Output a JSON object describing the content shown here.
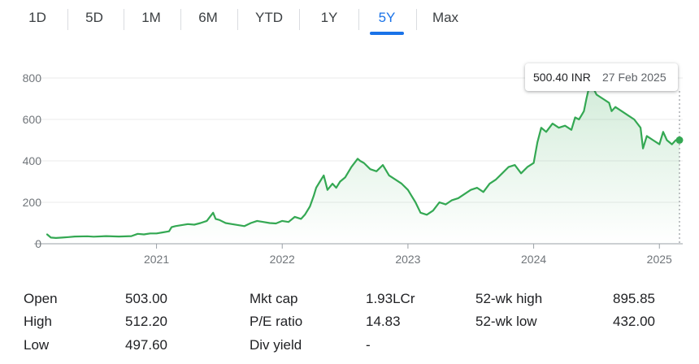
{
  "tabs": [
    {
      "label": "1D",
      "active": false
    },
    {
      "label": "5D",
      "active": false
    },
    {
      "label": "1M",
      "active": false
    },
    {
      "label": "6M",
      "active": false
    },
    {
      "label": "YTD",
      "active": false
    },
    {
      "label": "1Y",
      "active": false
    },
    {
      "label": "5Y",
      "active": true
    },
    {
      "label": "Max",
      "active": false
    }
  ],
  "tooltip": {
    "price": "500.40 INR",
    "date": "27 Feb 2025"
  },
  "colors": {
    "line": "#34a853",
    "accent": "#1a73e8",
    "grid": "#ebebeb",
    "text": "#202124",
    "muted": "#70757a"
  },
  "chart_data": {
    "type": "area",
    "title": "",
    "xlabel": "",
    "ylabel": "",
    "ylim": [
      0,
      800
    ],
    "xlim": [
      2020.13,
      2025.16
    ],
    "grid": true,
    "y_ticks": [
      {
        "value": 0,
        "label": "0"
      },
      {
        "value": 200,
        "label": "200"
      },
      {
        "value": 400,
        "label": "400"
      },
      {
        "value": 600,
        "label": "600"
      },
      {
        "value": 800,
        "label": "800"
      }
    ],
    "x_ticks": [
      {
        "value": 2021.0,
        "label": "2021"
      },
      {
        "value": 2022.0,
        "label": "2022"
      },
      {
        "value": 2023.0,
        "label": "2023"
      },
      {
        "value": 2024.0,
        "label": "2024"
      },
      {
        "value": 2025.0,
        "label": "2025"
      }
    ],
    "series": [
      {
        "x": [
          2020.13,
          2020.16,
          2020.2,
          2020.25,
          2020.3,
          2020.35,
          2020.45,
          2020.5,
          2020.6,
          2020.7,
          2020.8,
          2020.85,
          2020.9,
          2020.92,
          2020.95,
          2021.0,
          2021.05,
          2021.1,
          2021.12,
          2021.15,
          2021.2,
          2021.25,
          2021.3,
          2021.35,
          2021.4,
          2021.45,
          2021.47,
          2021.5,
          2021.55,
          2021.6,
          2021.65,
          2021.7,
          2021.75,
          2021.8,
          2021.85,
          2021.9,
          2021.95,
          2022.0,
          2022.05,
          2022.1,
          2022.15,
          2022.18,
          2022.22,
          2022.25,
          2022.27,
          2022.3,
          2022.33,
          2022.36,
          2022.4,
          2022.43,
          2022.46,
          2022.5,
          2022.55,
          2022.6,
          2022.62,
          2022.65,
          2022.7,
          2022.75,
          2022.8,
          2022.85,
          2022.9,
          2022.95,
          2023.0,
          2023.03,
          2023.06,
          2023.1,
          2023.15,
          2023.2,
          2023.25,
          2023.3,
          2023.35,
          2023.4,
          2023.45,
          2023.5,
          2023.55,
          2023.6,
          2023.65,
          2023.7,
          2023.75,
          2023.8,
          2023.85,
          2023.9,
          2023.95,
          2024.0,
          2024.03,
          2024.06,
          2024.1,
          2024.15,
          2024.2,
          2024.25,
          2024.3,
          2024.33,
          2024.36,
          2024.38,
          2024.4,
          2024.42,
          2024.45,
          2024.5,
          2024.55,
          2024.6,
          2024.62,
          2024.65,
          2024.7,
          2024.75,
          2024.8,
          2024.85,
          2024.87,
          2024.9,
          2024.95,
          2025.0,
          2025.03,
          2025.06,
          2025.1,
          2025.13,
          2025.16
        ],
        "values": [
          45,
          30,
          28,
          30,
          32,
          35,
          36,
          34,
          37,
          35,
          37,
          48,
          45,
          47,
          50,
          50,
          55,
          60,
          80,
          85,
          90,
          95,
          92,
          100,
          110,
          150,
          120,
          115,
          100,
          95,
          90,
          85,
          100,
          110,
          105,
          100,
          98,
          110,
          105,
          130,
          120,
          140,
          180,
          230,
          270,
          300,
          330,
          260,
          290,
          270,
          300,
          320,
          370,
          410,
          400,
          390,
          360,
          350,
          380,
          330,
          310,
          290,
          260,
          230,
          200,
          150,
          140,
          160,
          200,
          190,
          210,
          220,
          240,
          260,
          270,
          250,
          290,
          310,
          340,
          370,
          380,
          340,
          370,
          390,
          490,
          560,
          540,
          580,
          560,
          570,
          550,
          610,
          600,
          620,
          640,
          700,
          780,
          720,
          700,
          680,
          640,
          660,
          640,
          620,
          600,
          560,
          460,
          520,
          500,
          480,
          540,
          500,
          480,
          500,
          500.4
        ]
      }
    ],
    "last_point": {
      "x": 2025.16,
      "y": 500.4
    }
  },
  "stats": {
    "rows": [
      [
        {
          "label": "Open",
          "value": "503.00"
        },
        {
          "label": "Mkt cap",
          "value": "1.93LCr"
        },
        {
          "label": "52-wk high",
          "value": "895.85"
        }
      ],
      [
        {
          "label": "High",
          "value": "512.20"
        },
        {
          "label": "P/E ratio",
          "value": "14.83"
        },
        {
          "label": "52-wk low",
          "value": "432.00"
        }
      ],
      [
        {
          "label": "Low",
          "value": "497.60"
        },
        {
          "label": "Div yield",
          "value": "-"
        },
        {
          "label": "",
          "value": ""
        }
      ]
    ]
  }
}
